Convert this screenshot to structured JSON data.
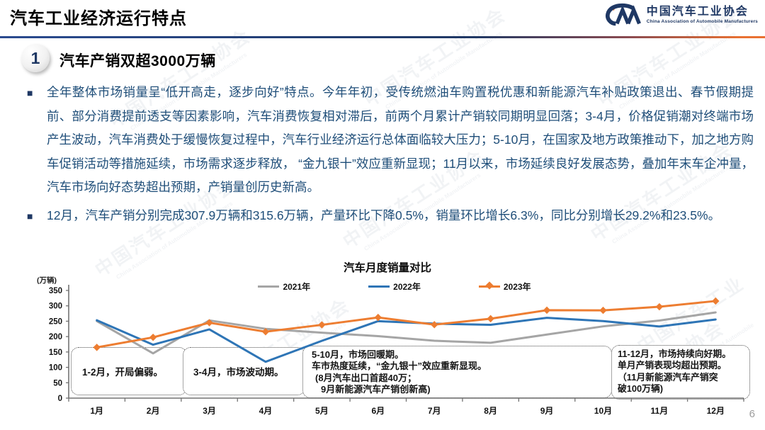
{
  "page": {
    "title": "汽车工业经济运行特点",
    "page_number": "6",
    "watermark_cn": "中国汽车工业协会",
    "watermark_en": "China Association of Automobile Manufacturers"
  },
  "logo": {
    "org_cn": "中国汽车工业协会",
    "org_en": "China Association of Automobile Manufacturers"
  },
  "section": {
    "number": "1",
    "heading": "汽车产销双超3000万辆"
  },
  "bullets": [
    {
      "text": "全年整体市场销量呈“低开高走，逐步向好”特点。今年年初，受传统燃油车购置税优惠和新能源汽车补贴政策退出、春节假期提前、部分消费提前透支等因素影响，汽车消费恢复相对滞后，前两个月累计产销较同期明显回落；3-4月，价格促销潮对终端市场产生波动，汽车消费处于缓慢恢复过程中，汽车行业经济运行总体面临较大压力；5-10月，在国家及地方政策推动下，加之地方购车促销活动等措施延续，市场需求逐步释放， “金九银十”效应重新显现；11月以来，市场延续良好发展态势，叠加年末车企冲量，汽车市场向好态势超出预期，产销量创历史新高。"
    },
    {
      "text": "12月，汽车产销分别完成307.9万辆和315.6万辆，产量环比下降0.5%，销量环比增长6.3%，同比分别增长29.2%和23.5%。"
    }
  ],
  "chart": {
    "unit_label": "(万辆)",
    "annotations": [
      {
        "lines": [
          "1-2月，开局偏弱。"
        ]
      },
      {
        "lines": [
          "3-4月，市场波动期。"
        ]
      },
      {
        "lines": [
          "5-10月，市场回暖期。",
          "车市热度延续，“金九银十”效应重新显现。",
          "(8月汽车出口首超40万；",
          "9月新能源汽车产销创新高)"
        ]
      },
      {
        "lines": [
          "11-12月，市场持续向好期。",
          "单月产销表现均超出预期。",
          "（11月新能源汽车产销突",
          "破100万辆)"
        ]
      }
    ]
  },
  "chart_data": {
    "type": "line",
    "title": "汽车月度销量对比",
    "xlabel": "",
    "ylabel": "万辆",
    "categories": [
      "1月",
      "2月",
      "3月",
      "4月",
      "5月",
      "6月",
      "7月",
      "8月",
      "9月",
      "10月",
      "11月",
      "12月"
    ],
    "series": [
      {
        "name": "2021年",
        "color": "#A5A5A5",
        "marker": "none",
        "values": [
          250.3,
          145.5,
          252.6,
          225.2,
          212.8,
          201.5,
          186.4,
          179.9,
          206.7,
          233.3,
          252.2,
          278.6
        ]
      },
      {
        "name": "2022年",
        "color": "#2E75B6",
        "marker": "none",
        "values": [
          253.1,
          173.7,
          223.4,
          118.1,
          186.2,
          250.2,
          242.0,
          238.3,
          261.0,
          250.5,
          232.8,
          255.6
        ]
      },
      {
        "name": "2023年",
        "color": "#ED7D31",
        "marker": "diamond",
        "values": [
          164.9,
          197.6,
          245.1,
          215.9,
          238.2,
          262.2,
          238.8,
          258.2,
          285.8,
          285.3,
          297.0,
          315.6
        ]
      }
    ],
    "ylim": [
      0,
      350
    ],
    "ytick_step": 50,
    "legend_position": "top",
    "grid": false
  }
}
